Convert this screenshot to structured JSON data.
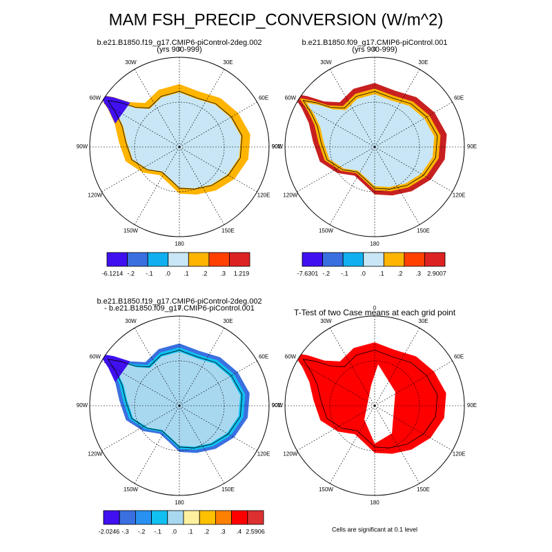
{
  "title": "MAM FSH_PRECIP_CONVERSION (W/m^2)",
  "longitudes": [
    "0",
    "30E",
    "60E",
    "90E",
    "120E",
    "150E",
    "180",
    "150W",
    "120W",
    "90W",
    "60W",
    "30W"
  ],
  "panels": [
    {
      "title": [
        "b.e21.B1850.f19_g17.CMIP6-piControl-2deg.002",
        "(yrs 900-999)"
      ],
      "colorbar": {
        "colors": [
          "#4010f0",
          "#3a6fe0",
          "#10b0f0",
          "#c8e6f5",
          "#ffb400",
          "#ff4000",
          "#dd2222"
        ],
        "labels": [
          "-6.1214",
          "-.2",
          "-.1",
          ".0",
          ".1",
          ".2",
          ".3",
          "1.219"
        ]
      }
    },
    {
      "title": [
        "b.e21.B1850.f09_g17.CMIP6-piControl.001",
        "(yrs 900-999)"
      ],
      "colorbar": {
        "colors": [
          "#4010f0",
          "#3a6fe0",
          "#10b0f0",
          "#c8e6f5",
          "#ffb400",
          "#ff4000",
          "#dd2222"
        ],
        "labels": [
          "-7.6301",
          "-.2",
          "-.1",
          ".0",
          ".1",
          ".2",
          ".3",
          "2.9007"
        ]
      }
    },
    {
      "title": [
        "b.e21.B1850.f19_g17.CMIP6-piControl-2deg.002",
        "- b.e21.B1850.f09_g17.CMIP6-piControl.001"
      ],
      "colorbar": {
        "colors": [
          "#4010f0",
          "#3a6fe0",
          "#2890f0",
          "#10c0f0",
          "#a8d8f0",
          "#fff0a0",
          "#ffc000",
          "#ff8000",
          "#ff0000",
          "#dd3030"
        ],
        "labels": [
          "-2.0246",
          "-.3",
          "-.2",
          "-.1",
          ".0",
          ".1",
          ".2",
          ".3",
          ".4",
          "2.5906"
        ]
      }
    },
    {
      "title": [
        "T-Test of two Case means at each grid point"
      ],
      "note": "Cells are significant at 0.1 level"
    }
  ]
}
